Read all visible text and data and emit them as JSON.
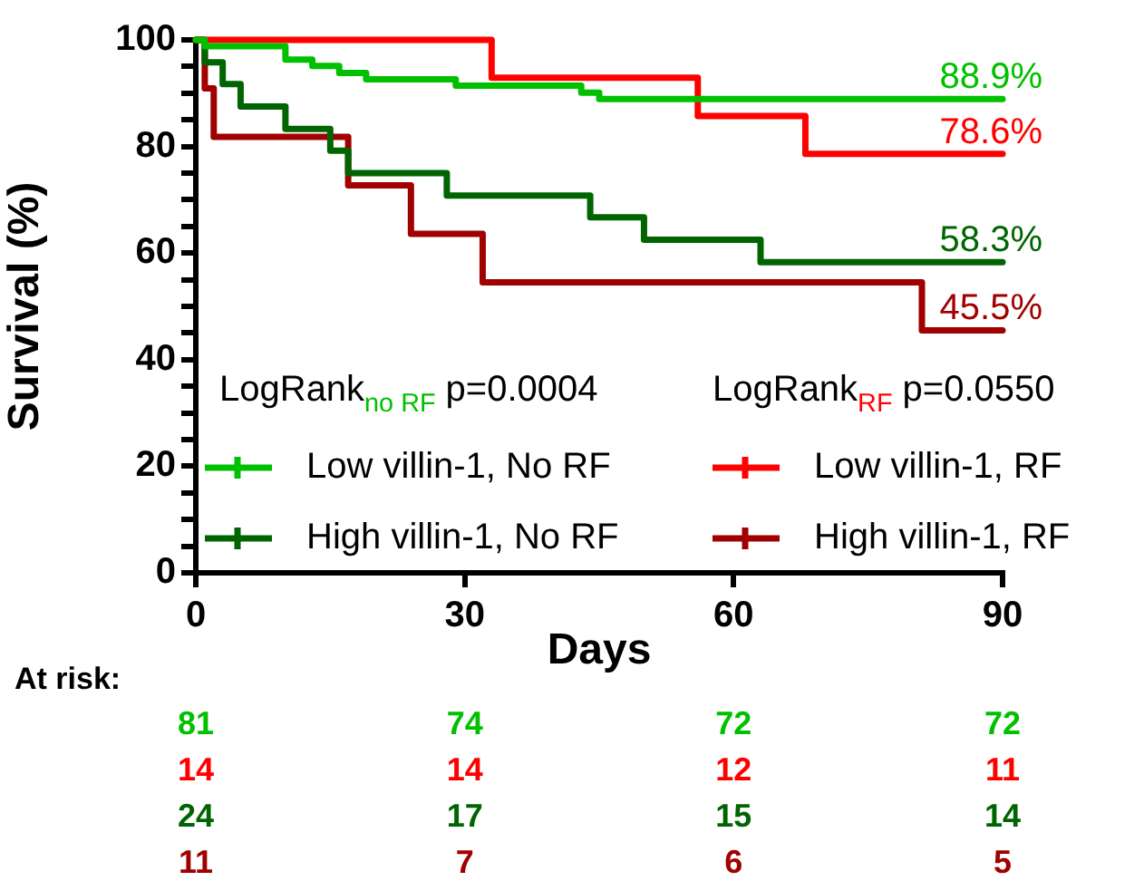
{
  "chart_data": {
    "type": "step",
    "xlabel": "Days",
    "ylabel": "Survival (%)",
    "xlim": [
      0,
      90
    ],
    "xticks": [
      0,
      30,
      60,
      90
    ],
    "ylim": [
      0,
      100
    ],
    "yticks": [
      0,
      {
        "value": 5,
        "label": null
      },
      {
        "value": 10,
        "label": null
      },
      {
        "value": 15,
        "label": null
      },
      20,
      {
        "value": 25,
        "label": null
      },
      {
        "value": 30,
        "label": null
      },
      {
        "value": 35,
        "label": null
      },
      40,
      {
        "value": 45,
        "label": null
      },
      {
        "value": 50,
        "label": null
      },
      {
        "value": 55,
        "label": null
      },
      60,
      {
        "value": 65,
        "label": null
      },
      {
        "value": 70,
        "label": null
      },
      {
        "value": 75,
        "label": null
      },
      80,
      {
        "value": 85,
        "label": null
      },
      {
        "value": 90,
        "label": null
      },
      {
        "value": 95,
        "label": null
      },
      100
    ],
    "grid": false,
    "legend": "bottom",
    "marker": "none",
    "line_style": "solid",
    "series": [
      {
        "name": "Low villin-1, No RF",
        "color": "#00c000",
        "x": [
          0,
          1,
          10,
          13,
          16,
          19,
          29,
          43,
          45,
          90
        ],
        "values": [
          100,
          98.8,
          96.3,
          95.1,
          93.8,
          92.6,
          91.4,
          90.1,
          88.9,
          88.9
        ],
        "value_labels": [
          null,
          null,
          null,
          null,
          null,
          null,
          null,
          null,
          null,
          "88.9%"
        ]
      },
      {
        "name": "Low villin-1, RF",
        "color": "#ff0000",
        "x": [
          0,
          33,
          56,
          68,
          90
        ],
        "values": [
          100,
          92.9,
          85.7,
          78.6,
          78.6
        ],
        "value_labels": [
          null,
          null,
          null,
          null,
          "78.6%"
        ]
      },
      {
        "name": "High villin-1, No RF",
        "color": "#006400",
        "x": [
          0,
          1,
          3,
          5,
          10,
          15,
          17,
          28,
          44,
          50,
          63,
          90
        ],
        "values": [
          100,
          95.8,
          91.7,
          87.5,
          83.3,
          79.2,
          75,
          70.8,
          66.7,
          62.5,
          58.3,
          58.3
        ],
        "value_labels": [
          null,
          null,
          null,
          null,
          null,
          null,
          null,
          null,
          null,
          null,
          null,
          "58.3%"
        ]
      },
      {
        "name": "High villin-1, RF",
        "color": "#a00000",
        "x": [
          0,
          1,
          2,
          17,
          24,
          32,
          81,
          90
        ],
        "values": [
          100,
          90.9,
          81.8,
          72.7,
          63.6,
          54.5,
          45.5,
          45.5
        ],
        "value_labels": [
          null,
          null,
          null,
          null,
          null,
          null,
          null,
          "45.5%"
        ]
      }
    ],
    "annotations": [
      "LogRank$_{no RF}$ p=0.0004",
      "LogRank$_{RF}$ p=0.0550",
      "At risk:",
      "81",
      "74",
      "72",
      "72",
      "14",
      "14",
      "12",
      "11",
      "24",
      "17",
      "15",
      "14",
      "11",
      "7",
      "6",
      "5"
    ]
  }
}
